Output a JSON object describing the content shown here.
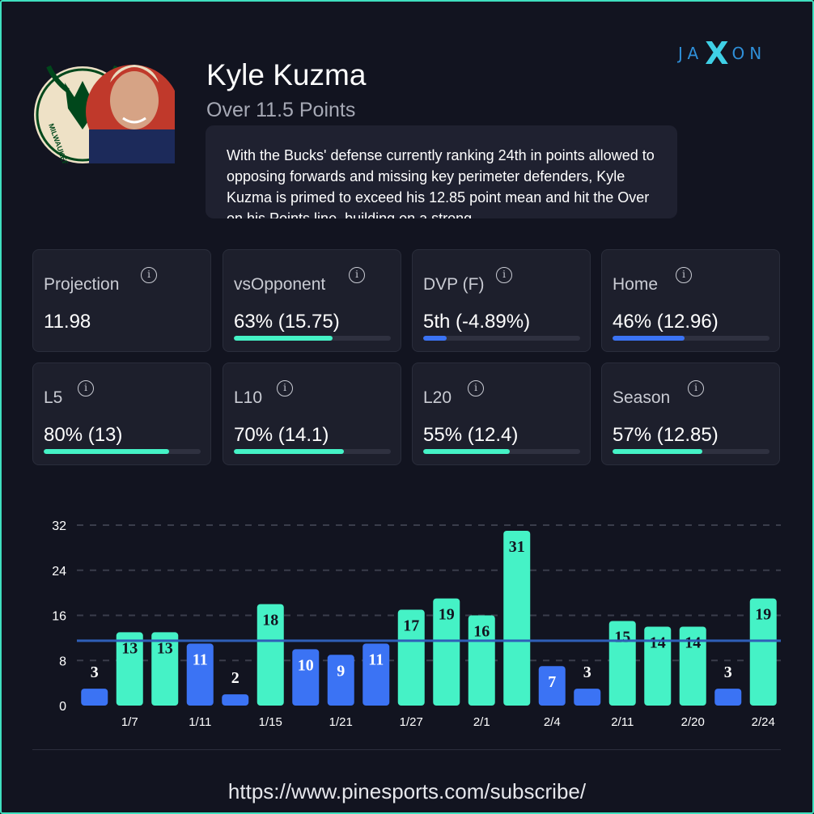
{
  "brand": {
    "left": "JA",
    "mid": "X",
    "right": "ON"
  },
  "player": {
    "name": "Kyle Kuzma",
    "pick": "Over 11.5 Points",
    "team_logo_text": "MILWAUKEE",
    "analysis": "With the Bucks' defense currently ranking 24th in points allowed to opposing forwards and missing key perimeter defenders, Kyle Kuzma is primed to exceed his 12.85 point mean and hit the Over on his Points line, building on a strong"
  },
  "stats": [
    {
      "label": "Projection",
      "value": "11.98"
    },
    {
      "label": "vsOpponent",
      "value": "63% (15.75)",
      "fill": 0.63,
      "color": "green"
    },
    {
      "label": "DVP (F)",
      "value": "5th (-4.89%)",
      "fill": 0.15,
      "color": "blue"
    },
    {
      "label": "Home",
      "value": "46% (12.96)",
      "fill": 0.46,
      "color": "blue"
    },
    {
      "label": "L5",
      "value": "80% (13)",
      "fill": 0.8,
      "color": "green"
    },
    {
      "label": "L10",
      "value": "70% (14.1)",
      "fill": 0.7,
      "color": "green"
    },
    {
      "label": "L20",
      "value": "55% (12.4)",
      "fill": 0.55,
      "color": "green"
    },
    {
      "label": "Season",
      "value": "57% (12.85)",
      "fill": 0.57,
      "color": "green"
    }
  ],
  "colors": {
    "over": "#45f2c6",
    "under": "#3b73f4",
    "line": "#2f5fb8"
  },
  "chart_data": {
    "type": "bar",
    "title": "",
    "xlabel": "",
    "ylabel": "",
    "ylim": [
      0,
      32
    ],
    "yticks": [
      0,
      8,
      16,
      24,
      32
    ],
    "line_value": 11.5,
    "values": [
      3,
      13,
      13,
      11,
      2,
      18,
      10,
      9,
      11,
      17,
      19,
      16,
      31,
      7,
      3,
      15,
      14,
      14,
      3,
      19
    ],
    "x_tick_labels": [
      "",
      "1/7",
      "",
      "1/11",
      "",
      "1/15",
      "",
      "1/21",
      "",
      "1/27",
      "",
      "2/1",
      "",
      "2/4",
      "",
      "2/11",
      "",
      "2/20",
      "",
      "2/24"
    ]
  },
  "footer": {
    "url": "https://www.pinesports.com/subscribe/"
  }
}
